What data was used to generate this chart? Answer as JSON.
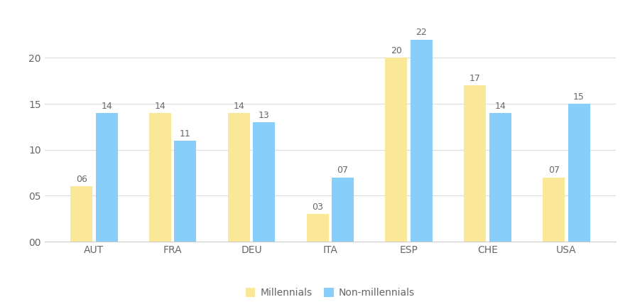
{
  "categories": [
    "AUT",
    "FRA",
    "DEU",
    "ITA",
    "ESP",
    "CHE",
    "USA"
  ],
  "millennials": [
    6,
    14,
    14,
    3,
    20,
    17,
    7
  ],
  "non_millennials": [
    14,
    11,
    13,
    7,
    22,
    14,
    15
  ],
  "millennials_labels": [
    "06",
    "14",
    "14",
    "03",
    "20",
    "17",
    "07"
  ],
  "non_millennials_labels": [
    "14",
    "11",
    "13",
    "07",
    "22",
    "14",
    "15"
  ],
  "millennials_color": "#FAE898",
  "non_millennials_color": "#87CEFA",
  "ylim": [
    0,
    24
  ],
  "yticks": [
    0,
    5,
    10,
    15,
    20
  ],
  "ytick_labels": [
    "00",
    "05",
    "10",
    "15",
    "20"
  ],
  "legend_millennials": "Millennials",
  "legend_non_millennials": "Non-millennials",
  "bar_width": 0.28,
  "label_fontsize": 9,
  "tick_fontsize": 10,
  "legend_fontsize": 10,
  "background_color": "#ffffff",
  "grid_color": "#dddddd",
  "bottom_spine_color": "#cccccc",
  "text_color": "#666666"
}
